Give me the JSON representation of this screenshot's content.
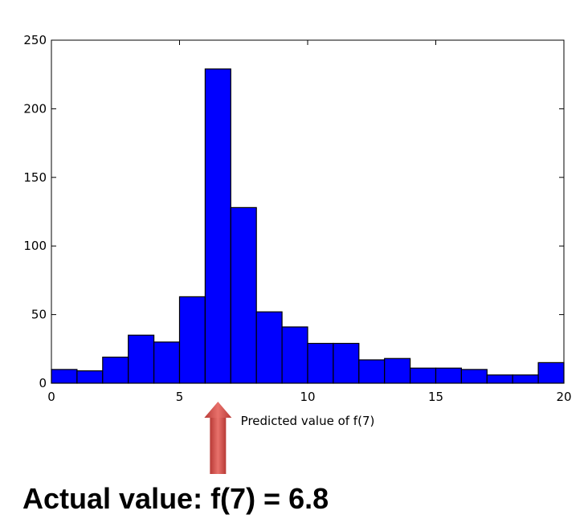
{
  "chart_data": {
    "type": "bar",
    "subtype": "histogram",
    "xlabel": "Predicted value of f(7)",
    "xlim": [
      0,
      20
    ],
    "ylim": [
      0,
      250
    ],
    "xticks": [
      0,
      5,
      10,
      15,
      20
    ],
    "yticks": [
      0,
      50,
      100,
      150,
      200,
      250
    ],
    "bin_edges": [
      0,
      1,
      2,
      3,
      4,
      5,
      6,
      7,
      8,
      9,
      10,
      11,
      12,
      13,
      14,
      15,
      16,
      17,
      18,
      19,
      20
    ],
    "values": [
      10,
      9,
      19,
      35,
      30,
      63,
      229,
      128,
      52,
      41,
      29,
      29,
      17,
      18,
      11,
      11,
      10,
      6,
      6,
      15
    ],
    "bar_color": "#0000ff",
    "edge_color": "#000000",
    "grid": false
  },
  "annotation": {
    "arrow_color": "#d9534f",
    "arrow_target_x": 6.5,
    "caption": "Actual value: f(7) = 6.8"
  }
}
